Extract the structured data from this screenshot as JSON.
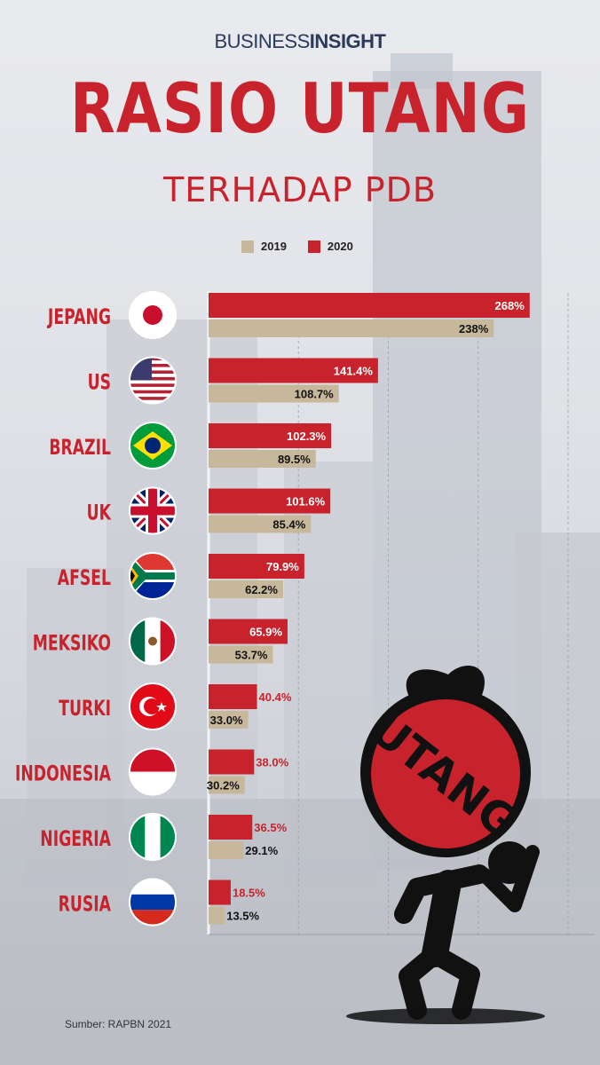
{
  "brand": {
    "part1": "BUSINESS",
    "part2": "INSIGHT"
  },
  "title": {
    "line1": "RASIO UTANG",
    "line2": "TERHADAP PDB"
  },
  "legend": [
    {
      "label": "2019",
      "color": "#c8b89b"
    },
    {
      "label": "2020",
      "color": "#c8232c"
    }
  ],
  "chart_data": {
    "type": "bar",
    "orientation": "horizontal",
    "categories": [
      "JEPANG",
      "US",
      "BRAZIL",
      "UK",
      "AFSEL",
      "MEKSIKO",
      "TURKI",
      "INDONESIA",
      "NIGERIA",
      "RUSIA"
    ],
    "series": [
      {
        "name": "2020",
        "color": "#c8232c",
        "values": [
          268,
          141.4,
          102.3,
          101.6,
          79.9,
          65.9,
          40.4,
          38.0,
          36.5,
          18.5
        ],
        "labels": [
          "268%",
          "141.4%",
          "102.3%",
          "101.6%",
          "79.9%",
          "65.9%",
          "40.4%",
          "38.0%",
          "36.5%",
          "18.5%"
        ]
      },
      {
        "name": "2019",
        "color": "#c8b89b",
        "values": [
          238,
          108.7,
          89.5,
          85.4,
          62.2,
          53.7,
          33.0,
          30.2,
          29.1,
          13.5
        ],
        "labels": [
          "238%",
          "108.7%",
          "89.5%",
          "85.4%",
          "62.2%",
          "53.7%",
          "33.0%",
          "30.2%",
          "29.1%",
          "13.5%"
        ]
      }
    ],
    "xlim": [
      0,
      300
    ],
    "flags": [
      "japan-flag-icon",
      "usa-flag-icon",
      "brazil-flag-icon",
      "uk-flag-icon",
      "south-africa-flag-icon",
      "mexico-flag-icon",
      "turkey-flag-icon",
      "indonesia-flag-icon",
      "nigeria-flag-icon",
      "russia-flag-icon"
    ]
  },
  "illustration": {
    "sack_text": "UTANG",
    "icon": "man-carrying-debt-sack-icon"
  },
  "source": "Sumber: RAPBN 2021"
}
